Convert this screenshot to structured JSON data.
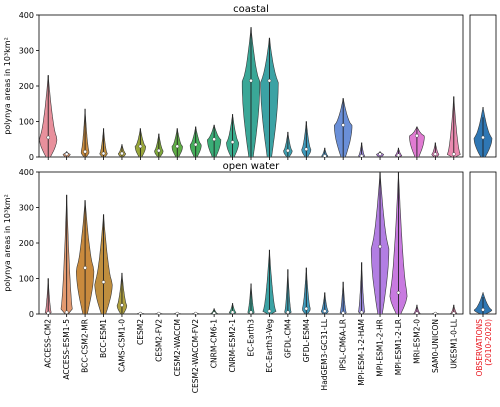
{
  "chart_data": {
    "type": "violin",
    "categories": [
      "ACCESS-CM2",
      "ACCESS-ESM1-5",
      "BCC-CSM2-MR",
      "BCC-ESM1",
      "CAMS-CSM1-0",
      "CESM2",
      "CESM2-FV2",
      "CESM2-WACCM",
      "CESM2-WACCM-FV2",
      "CNRM-CM6-1",
      "CNRM-ESM2-1",
      "EC-Earth3",
      "EC-Earth3-Veg",
      "GFDL-CM4",
      "GFDL-ESM4",
      "HadGEM3-GC31-LL",
      "IPSL-CM6A-LR",
      "MPI-ESM-1-2-HAM",
      "MPI-ESM1-2-HR",
      "MPI-ESM1-2-LR",
      "MRI-ESM2-0",
      "SAM0-UNICON",
      "UKESM1-0-LL"
    ],
    "colors": [
      "#e8909c",
      "#e39a70",
      "#c98a3d",
      "#bf8e3e",
      "#aea040",
      "#98a63a",
      "#7fa83a",
      "#5fad46",
      "#44ad5a",
      "#3aad77",
      "#3aad8e",
      "#3aa797",
      "#3ba2a4",
      "#3d9fb0",
      "#3f9bbd",
      "#4594c8",
      "#6a8fd8",
      "#9b8ae0",
      "#b27ee3",
      "#c87ae0",
      "#e07bd2",
      "#e884bd",
      "#ea8ab0"
    ],
    "ylabel": "polynya areas in 10³km²",
    "ylim": [
      0,
      400
    ],
    "yticks": [
      "0",
      "100",
      "200",
      "300",
      "400"
    ],
    "panels": [
      {
        "title": "coastal",
        "medians": [
          55,
          8,
          15,
          10,
          10,
          30,
          18,
          30,
          35,
          50,
          42,
          215,
          215,
          18,
          22,
          3,
          90,
          3,
          8,
          5,
          60,
          8,
          8
        ],
        "maxima": [
          230,
          15,
          135,
          80,
          35,
          80,
          65,
          80,
          85,
          90,
          120,
          365,
          335,
          70,
          100,
          25,
          165,
          40,
          15,
          25,
          85,
          40,
          170
        ],
        "obs_median": 55
      },
      {
        "title": "open water",
        "medians": [
          3,
          5,
          130,
          90,
          25,
          1,
          1,
          1,
          1,
          2,
          5,
          5,
          8,
          5,
          15,
          8,
          3,
          5,
          190,
          60,
          2,
          1,
          2
        ],
        "maxima": [
          100,
          335,
          320,
          280,
          115,
          2,
          2,
          2,
          2,
          15,
          30,
          85,
          180,
          125,
          130,
          60,
          90,
          145,
          400,
          400,
          25,
          2,
          25
        ],
        "obs_median": 12
      }
    ],
    "obs_label": [
      "OBSERVATIONS",
      "(2010-2020)"
    ],
    "obs_color": "#e8141c",
    "obs_fill": "#2f77b4",
    "grid": false
  }
}
